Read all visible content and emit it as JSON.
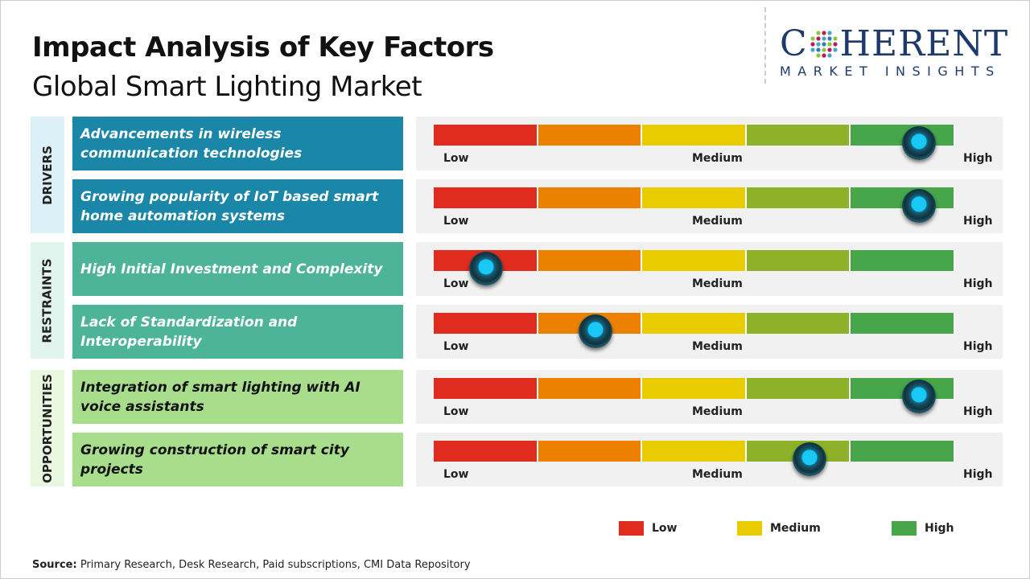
{
  "header": {
    "title": "Impact Analysis of Key Factors",
    "subtitle": "Global Smart Lighting Market"
  },
  "logo": {
    "line1_pre": "C",
    "line1_post": "HERENT",
    "line2": "MARKET INSIGHTS"
  },
  "colors": {
    "drivers": "#1a86a8",
    "restraints": "#4db49a",
    "opportunities": "#a8dd8b",
    "low": "#e02b1f",
    "low_med": "#ec8100",
    "medium": "#e8cc00",
    "med_high": "#8db22a",
    "high": "#46a649"
  },
  "chart_data": {
    "type": "gauge-table",
    "title": "Impact Analysis of Key Factors",
    "scale_labels": [
      "Low",
      "Medium",
      "High"
    ],
    "scale_range": [
      0,
      1
    ],
    "groups": [
      {
        "name": "DRIVERS",
        "factors": [
          {
            "label": "Advancements in wireless communication technologies",
            "impact": 0.93
          },
          {
            "label": "Growing popularity of IoT based smart home automation systems",
            "impact": 0.93
          }
        ]
      },
      {
        "name": "RESTRAINTS",
        "factors": [
          {
            "label": "High Initial Investment and Complexity",
            "impact": 0.1
          },
          {
            "label": "Lack of Standardization and Interoperability",
            "impact": 0.31
          }
        ]
      },
      {
        "name": "OPPORTUNITIES",
        "factors": [
          {
            "label": "Integration of smart lighting with AI voice assistants",
            "impact": 0.93
          },
          {
            "label": "Growing construction of smart city projects",
            "impact": 0.72
          }
        ]
      }
    ],
    "legend": [
      "Low",
      "Medium",
      "High"
    ]
  },
  "source": {
    "label": "Source:",
    "text": " Primary Research, Desk Research, Paid subscriptions, CMI Data Repository"
  }
}
